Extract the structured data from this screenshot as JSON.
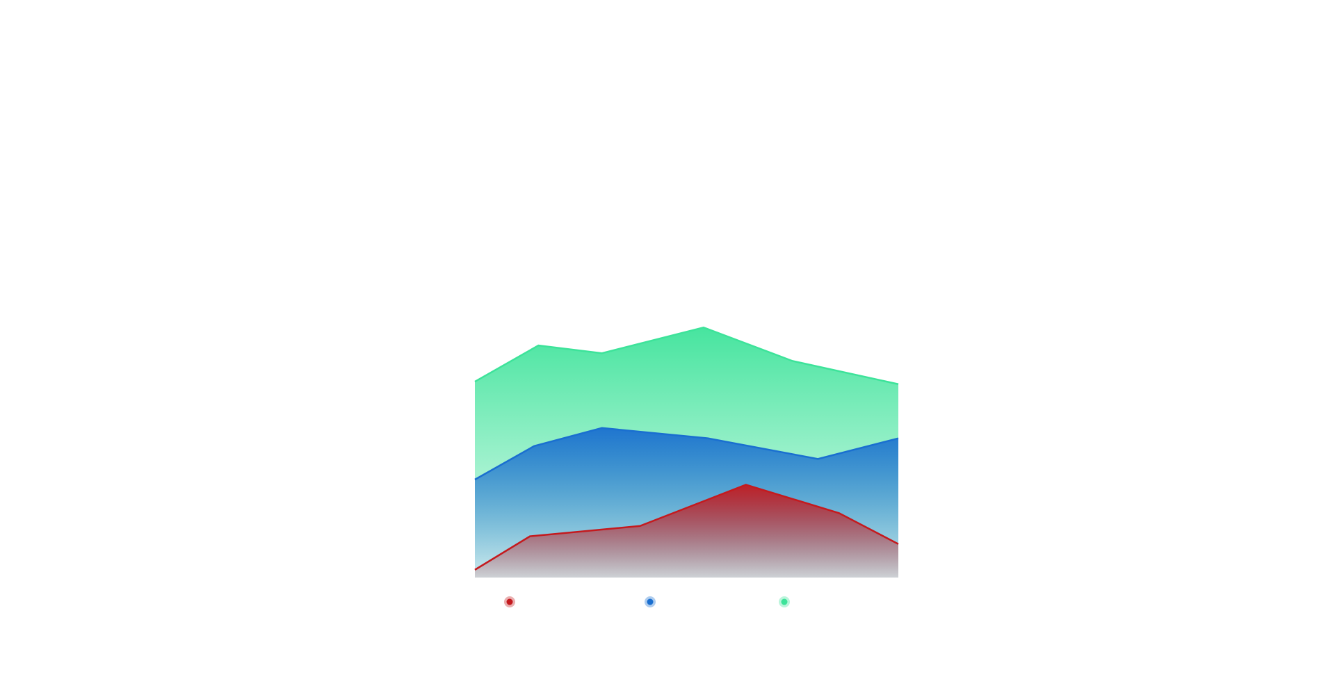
{
  "chart_data": {
    "type": "area",
    "xlim": [
      0,
      100
    ],
    "ylim": [
      0,
      100
    ],
    "series": [
      {
        "color": "#3de39a",
        "x": [
          0,
          15,
          30,
          54,
          75,
          100
        ],
        "values": [
          76,
          90,
          87,
          97,
          84,
          75
        ]
      },
      {
        "color": "#1a6fd0",
        "x": [
          0,
          14,
          30,
          55,
          81,
          100
        ],
        "values": [
          38,
          51,
          58,
          54,
          46,
          54
        ]
      },
      {
        "color": "#c41a1e",
        "x": [
          0,
          13,
          39,
          64,
          86,
          100
        ],
        "values": [
          3,
          16,
          20,
          36,
          25,
          13
        ]
      }
    ]
  }
}
